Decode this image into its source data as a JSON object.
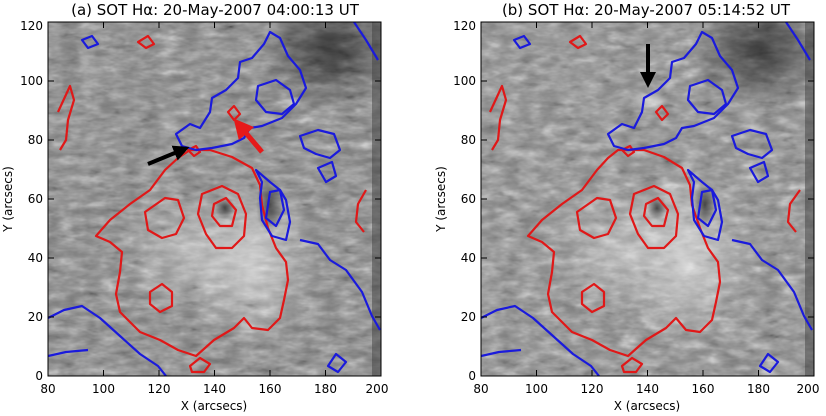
{
  "panels": [
    {
      "title": "(a) SOT Hα: 20-May-2007 04:00:13 UT",
      "xlabel": "X (arcsecs)",
      "ylabel": "Y (arcsecs)",
      "xticks": [
        "80",
        "100",
        "120",
        "140",
        "160",
        "180",
        "200"
      ],
      "yticks": [
        "0",
        "20",
        "40",
        "60",
        "80",
        "100",
        "120"
      ]
    },
    {
      "title": "(b) SOT Hα: 20-May-2007 05:14:52 UT",
      "xlabel": "X (arcsecs)",
      "ylabel": "Y (arcsecs)",
      "xticks": [
        "80",
        "100",
        "120",
        "140",
        "160",
        "180",
        "200"
      ],
      "yticks": [
        "0",
        "20",
        "40",
        "60",
        "80",
        "100",
        "120"
      ]
    }
  ],
  "colors": {
    "positive_contour": "#e01818",
    "negative_contour": "#1a1adc",
    "arrow_black": "#000000",
    "arrow_red": "#e61a1a"
  }
}
